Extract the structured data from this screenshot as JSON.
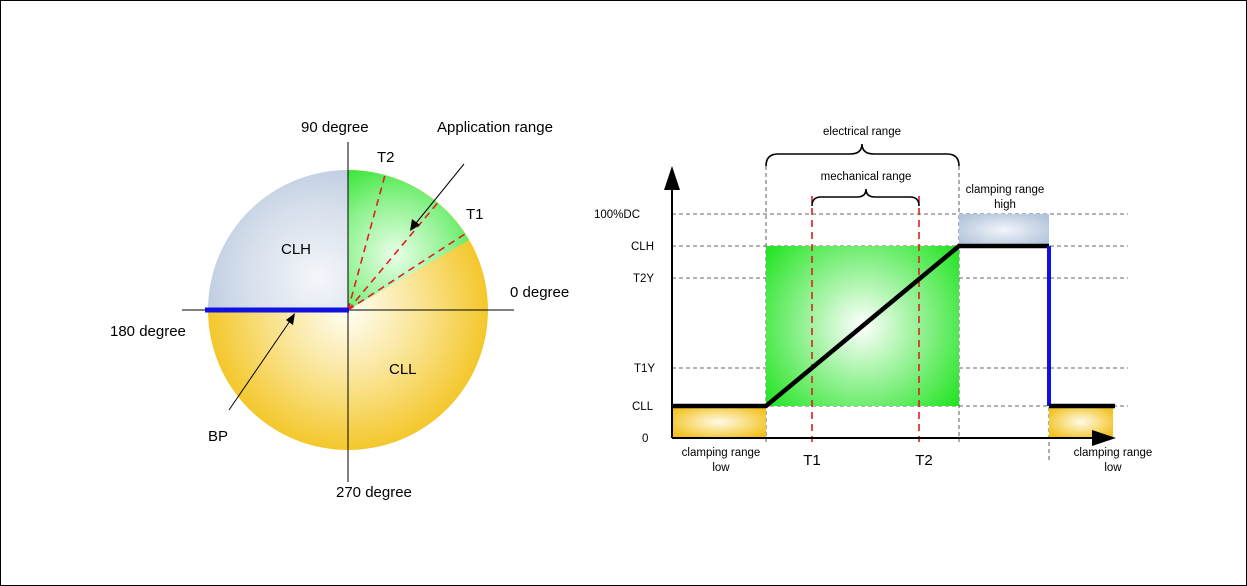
{
  "pie": {
    "angle_90": "90 degree",
    "angle_0": "0 degree",
    "angle_180": "180 degree",
    "angle_270": "270 degree",
    "application_range": "Application range",
    "t2": "T2",
    "t1": "T1",
    "clh": "CLH",
    "cll": "CLL",
    "bp": "BP"
  },
  "graph": {
    "electrical_range": "electrical range",
    "mechanical_range": "mechanical range",
    "clamping_high_line1": "clamping range",
    "clamping_high_line2": "high",
    "clamping_low_left_line1": "clamping range",
    "clamping_low_left_line2": "low",
    "clamping_low_right_line1": "clamping range",
    "clamping_low_right_line2": "low",
    "y_100dc": "100%DC",
    "y_clh": "CLH",
    "y_t2y": "T2Y",
    "y_t1y": "T1Y",
    "y_cll": "CLL",
    "y_0": "0",
    "x_t1": "T1",
    "x_t2": "T2"
  },
  "colors": {
    "blue_region": "#c2d0e2",
    "yellow_region": "#f5c51e",
    "green_region": "#22e622",
    "blue_line": "#1010e0",
    "red_dashed": "#e02020"
  }
}
